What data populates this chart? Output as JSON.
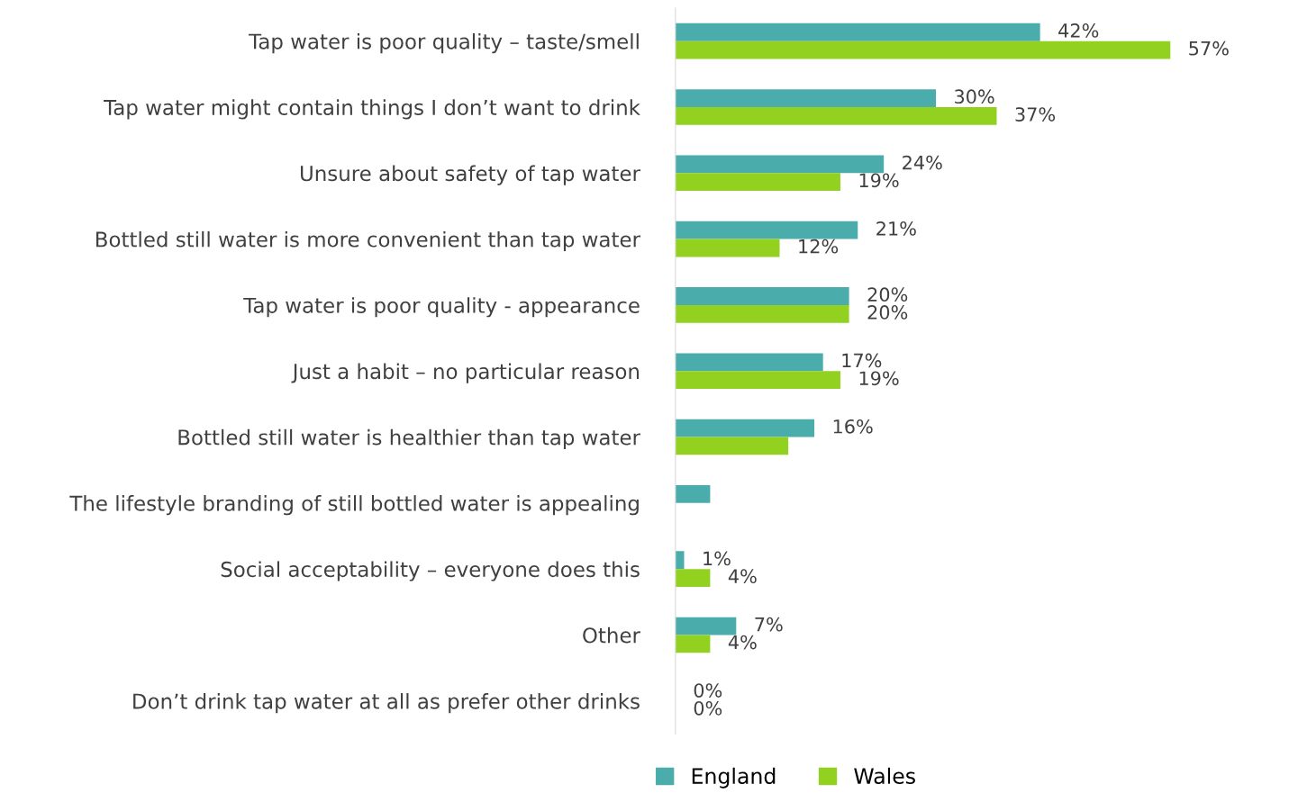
{
  "chart_data": {
    "type": "bar",
    "orientation": "horizontal",
    "categories": [
      "Tap water is poor quality – taste/smell",
      "Tap water might contain things I don’t want to drink",
      "Unsure about safety of tap water",
      "Bottled still water is more convenient than tap water",
      "Tap water is poor quality - appearance",
      "Just a habit – no particular reason",
      "Bottled still water is healthier than tap water",
      "The lifestyle branding of still bottled water is appealing",
      "Social acceptability – everyone does this",
      "Other",
      "Don’t drink tap water at all as prefer other drinks"
    ],
    "series": [
      {
        "name": "England",
        "color": "#4bacac",
        "values": [
          42,
          30,
          24,
          21,
          20,
          17,
          16,
          4,
          1,
          7,
          0
        ],
        "value_labels": [
          "42%",
          "30%",
          "24%",
          "21%",
          "20%",
          "17%",
          "16%",
          null,
          "1%",
          "7%",
          "0%"
        ]
      },
      {
        "name": "Wales",
        "color": "#92d120",
        "values": [
          57,
          37,
          19,
          12,
          20,
          19,
          13,
          0,
          4,
          4,
          0
        ],
        "value_labels": [
          "57%",
          "37%",
          "19%",
          "12%",
          "20%",
          "19%",
          null,
          null,
          "4%",
          "4%",
          "0%"
        ]
      }
    ],
    "tick_labels": "y",
    "grid": false,
    "legend": "bottom"
  }
}
